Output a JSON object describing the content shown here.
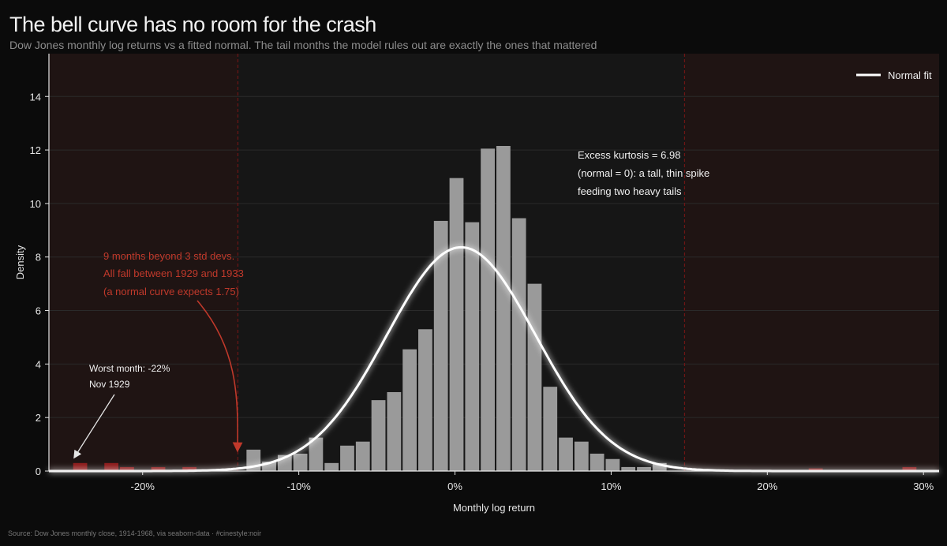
{
  "title": "The bell curve has no room for the crash",
  "subtitle": "Dow Jones monthly log returns vs a fitted normal. The tail months the model rules out are exactly the ones that mattered",
  "source": "Source: Dow Jones monthly close, 1914-1968, via seaborn-data  ·  #cinestyle:noir",
  "colors": {
    "background": "#0b0b0b",
    "plot_background": "#161616",
    "tail_shade": "#1f1413",
    "bar": "#9a9a9a",
    "tail_bar": "#8b1a1a",
    "curve": "#ffffff",
    "annotation_red": "#c0392b",
    "threshold_line": "#6e1515"
  },
  "chart_data": {
    "type": "bar",
    "xlabel": "Monthly log return",
    "ylabel": "Density",
    "xlim": [
      -0.26,
      0.31
    ],
    "ylim": [
      0,
      15.6
    ],
    "x_ticks": [
      -0.2,
      -0.1,
      0.0,
      0.1,
      0.2,
      0.3
    ],
    "x_tick_labels": [
      "-20%",
      "-10%",
      "0%",
      "10%",
      "20%",
      "30%"
    ],
    "y_ticks": [
      0,
      2,
      4,
      6,
      8,
      10,
      12,
      14
    ],
    "y_tick_labels": [
      "0",
      "2",
      "4",
      "6",
      "8",
      "10",
      "12",
      "14"
    ],
    "grid": "horizontal",
    "legend": {
      "position": "top-right",
      "entries": [
        "Normal fit"
      ]
    },
    "thresholds": [
      -0.139,
      0.147
    ],
    "bin_width": 0.01,
    "histogram": [
      {
        "x0": -0.245,
        "density": 0.3,
        "tail": true
      },
      {
        "x0": -0.225,
        "density": 0.3,
        "tail": true
      },
      {
        "x0": -0.215,
        "density": 0.15,
        "tail": true
      },
      {
        "x0": -0.195,
        "density": 0.15,
        "tail": true
      },
      {
        "x0": -0.175,
        "density": 0.15,
        "tail": true
      },
      {
        "x0": -0.134,
        "density": 0.8
      },
      {
        "x0": -0.124,
        "density": 0.35
      },
      {
        "x0": -0.114,
        "density": 0.6
      },
      {
        "x0": -0.104,
        "density": 0.65
      },
      {
        "x0": -0.094,
        "density": 1.25
      },
      {
        "x0": -0.084,
        "density": 0.3
      },
      {
        "x0": -0.074,
        "density": 0.95
      },
      {
        "x0": -0.064,
        "density": 1.1
      },
      {
        "x0": -0.054,
        "density": 2.65
      },
      {
        "x0": -0.044,
        "density": 2.95
      },
      {
        "x0": -0.034,
        "density": 4.55
      },
      {
        "x0": -0.024,
        "density": 5.3
      },
      {
        "x0": -0.014,
        "density": 9.35
      },
      {
        "x0": -0.004,
        "density": 10.95
      },
      {
        "x0": 0.006,
        "density": 9.3
      },
      {
        "x0": 0.016,
        "density": 12.05
      },
      {
        "x0": 0.026,
        "density": 12.15
      },
      {
        "x0": 0.036,
        "density": 9.45
      },
      {
        "x0": 0.046,
        "density": 7.0
      },
      {
        "x0": 0.056,
        "density": 3.15
      },
      {
        "x0": 0.066,
        "density": 1.25
      },
      {
        "x0": 0.076,
        "density": 1.1
      },
      {
        "x0": 0.086,
        "density": 0.65
      },
      {
        "x0": 0.096,
        "density": 0.45
      },
      {
        "x0": 0.106,
        "density": 0.15
      },
      {
        "x0": 0.116,
        "density": 0.15
      },
      {
        "x0": 0.126,
        "density": 0.3
      },
      {
        "x0": 0.226,
        "density": 0.1,
        "tail": true
      },
      {
        "x0": 0.286,
        "density": 0.15,
        "tail": true
      }
    ],
    "normal_fit": {
      "name": "Normal fit",
      "mean": 0.004,
      "std": 0.0477
    },
    "annotations": {
      "kurtosis": [
        "Excess kurtosis = 6.98",
        "(normal = 0): a tall, thin spike",
        "feeding two heavy tails"
      ],
      "tail_count": [
        "9 months beyond 3 std devs.",
        "All fall between 1929 and 1933",
        "(a normal curve expects 1.75)"
      ],
      "worst": [
        "Worst month: -22%",
        "Nov 1929"
      ]
    }
  }
}
